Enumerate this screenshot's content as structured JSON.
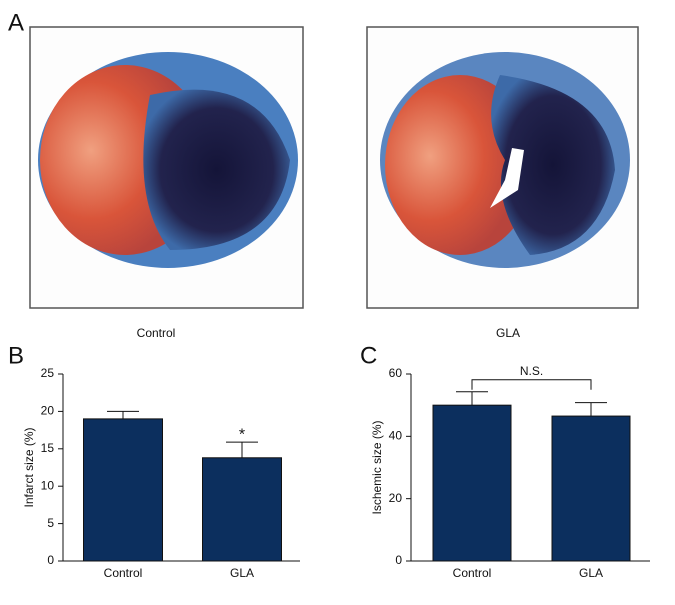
{
  "figure": {
    "panel": "A",
    "images": [
      {
        "caption": "Control"
      },
      {
        "caption": "GLA"
      }
    ]
  },
  "chart_data": [
    {
      "type": "bar",
      "panel": "B",
      "ylabel": "Infarct size (%)",
      "categories": [
        "Control",
        "GLA"
      ],
      "values": [
        19,
        13.8
      ],
      "errors": [
        1,
        2.1
      ],
      "color": "#0c2f5e",
      "ylim": [
        0,
        25
      ],
      "yticks": [
        0,
        5,
        10,
        15,
        20,
        25
      ],
      "annotations": [
        {
          "text": "*",
          "categories": [
            1
          ]
        }
      ]
    },
    {
      "type": "bar",
      "panel": "C",
      "ylabel": "Ischemic size (%)",
      "categories": [
        "Control",
        "GLA"
      ],
      "values": [
        50,
        46.5
      ],
      "errors": [
        4.3,
        4.3
      ],
      "color": "#0c2f5e",
      "ylim": [
        0,
        60
      ],
      "yticks": [
        0,
        20,
        40,
        60
      ],
      "annotations": [
        {
          "text": "N.S.",
          "categories": [
            0,
            1
          ]
        }
      ]
    }
  ]
}
